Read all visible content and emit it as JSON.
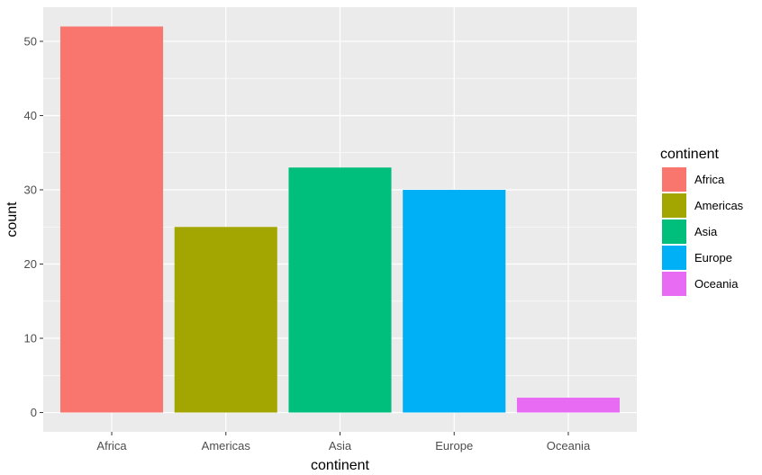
{
  "chart_data": {
    "type": "bar",
    "title": "",
    "xlabel": "continent",
    "ylabel": "count",
    "categories": [
      "Africa",
      "Americas",
      "Asia",
      "Europe",
      "Oceania"
    ],
    "values": [
      52,
      25,
      33,
      30,
      2
    ],
    "colors": [
      "#F8766D",
      "#A3A500",
      "#00BF7D",
      "#00B0F6",
      "#E76BF3"
    ],
    "ylim": [
      -2.6,
      54.6
    ],
    "yticks": [
      0,
      10,
      20,
      30,
      40,
      50
    ],
    "grid": true,
    "background": "#EBEBEB",
    "legend": {
      "title": "continent",
      "position": "right",
      "entries": [
        "Africa",
        "Americas",
        "Asia",
        "Europe",
        "Oceania"
      ]
    }
  }
}
